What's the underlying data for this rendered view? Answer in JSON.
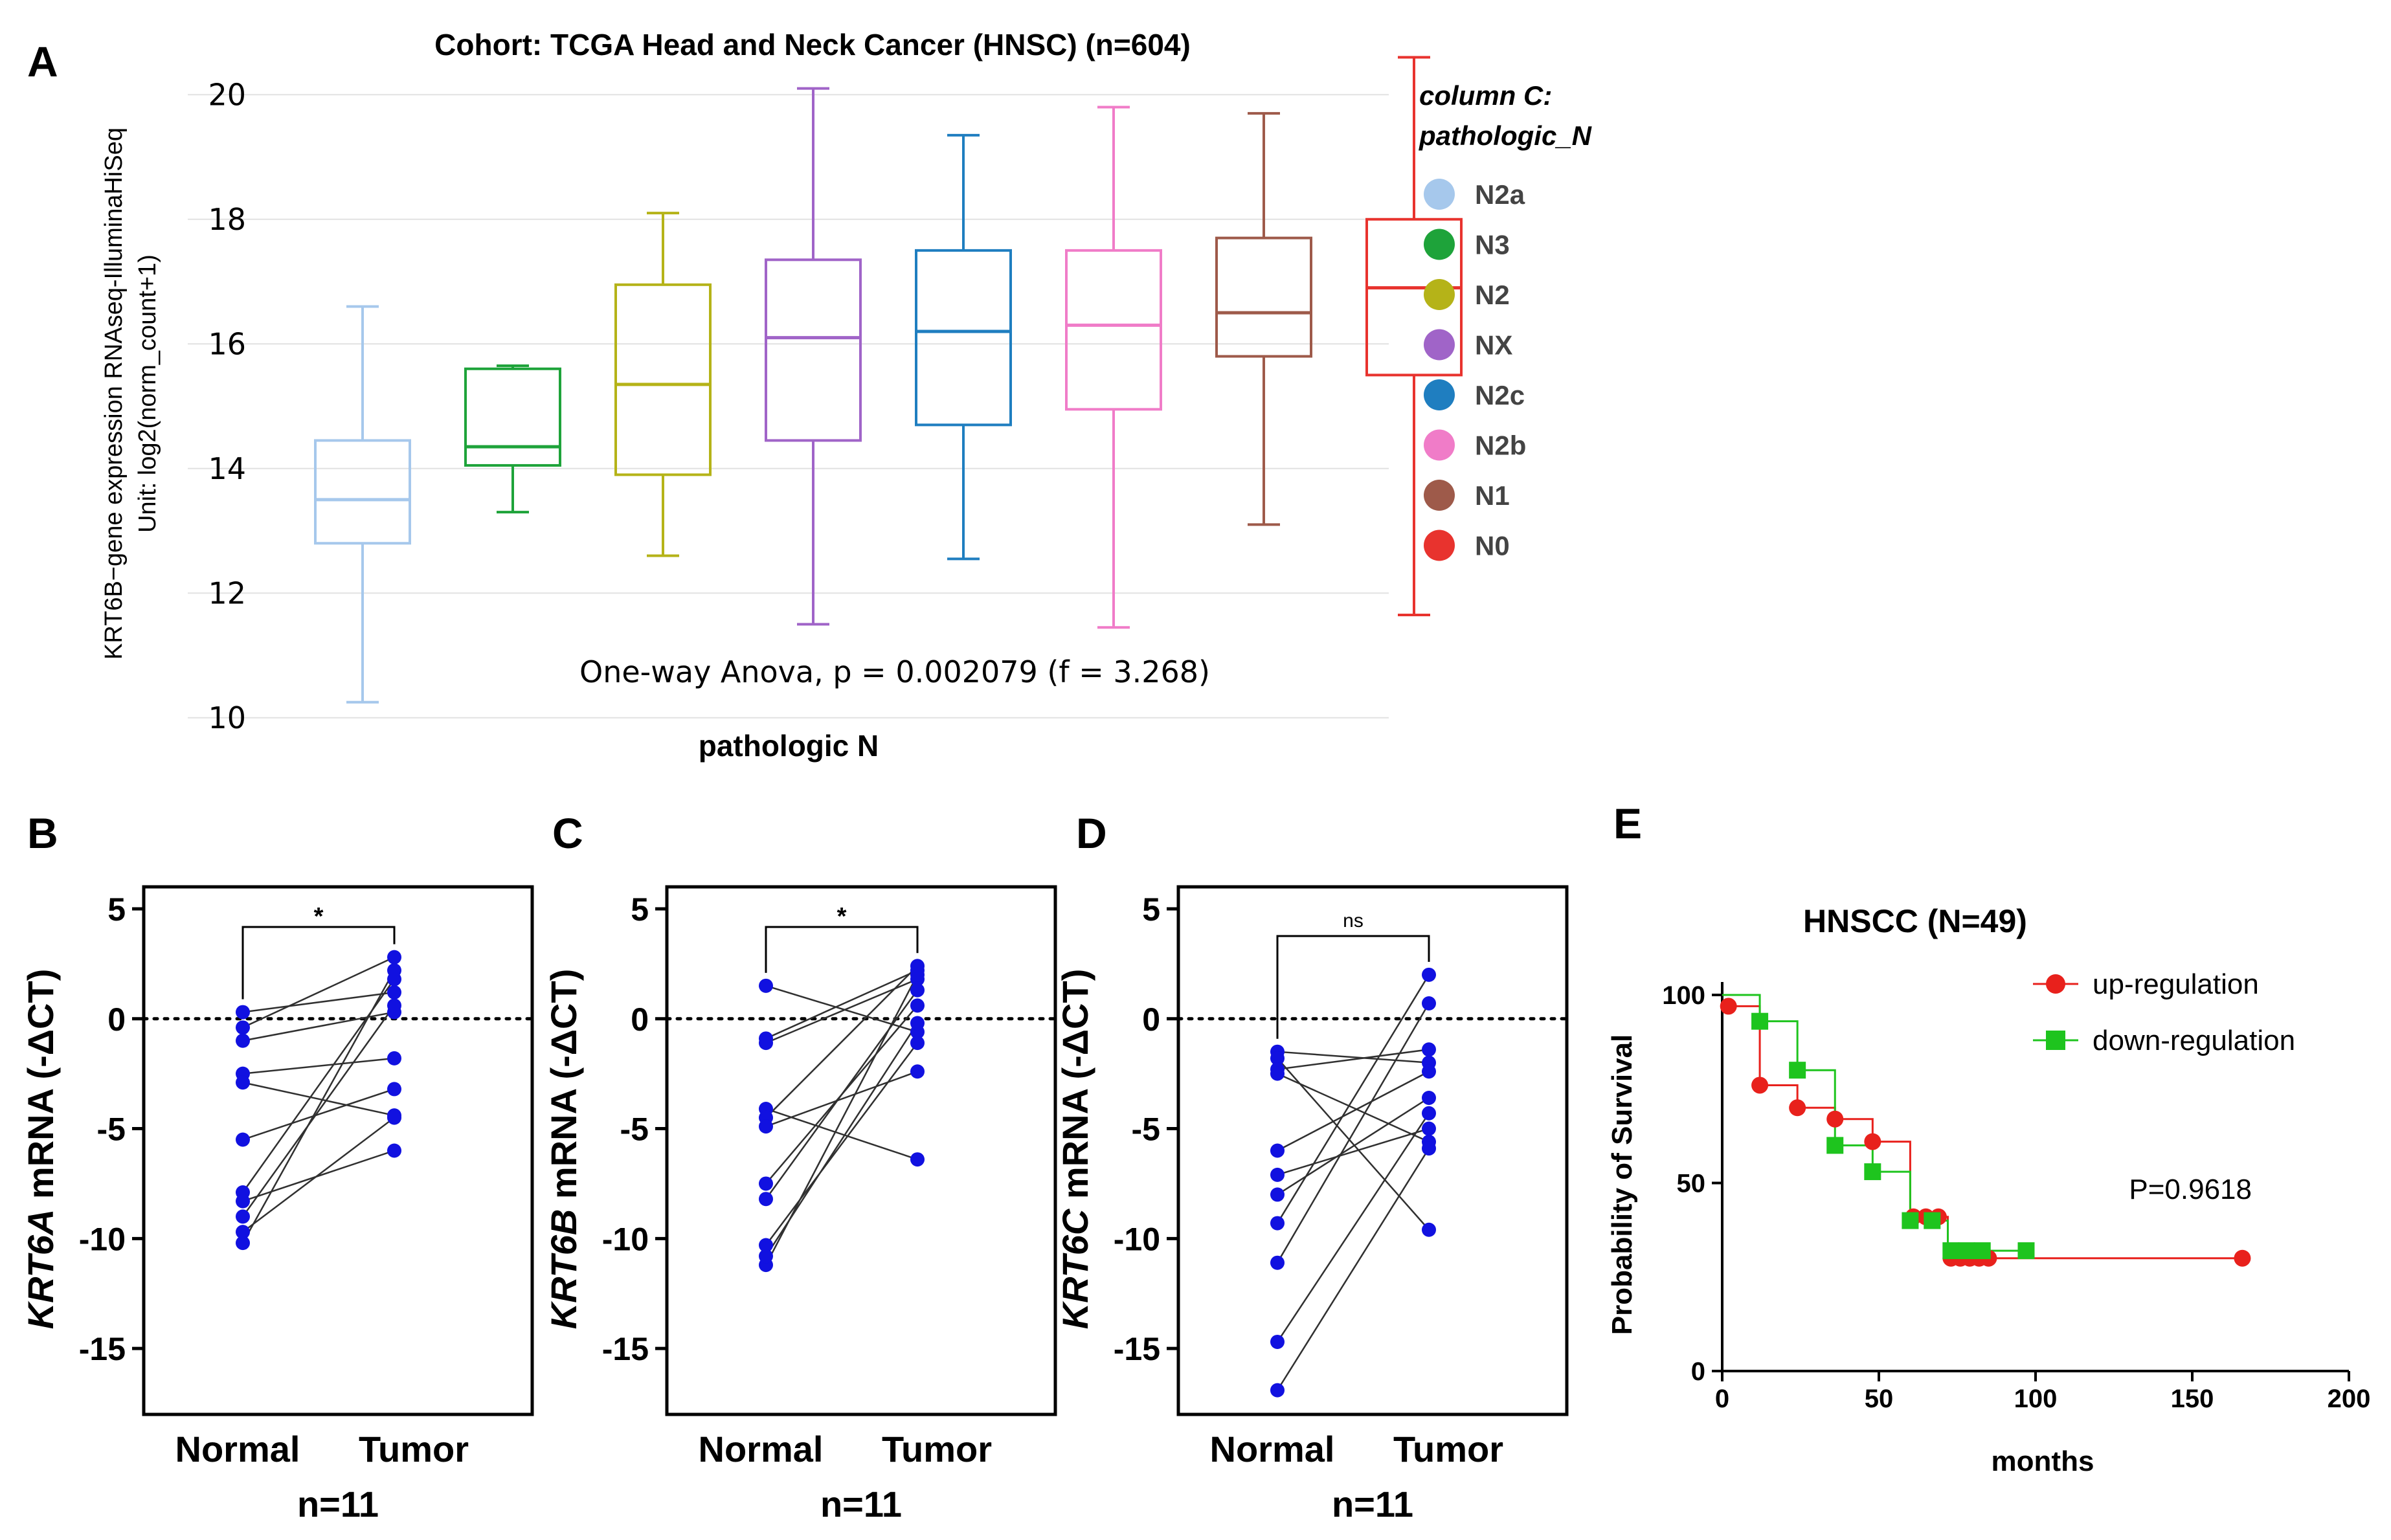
{
  "figure": {
    "panel_letters": [
      "A",
      "B",
      "C",
      "D",
      "E"
    ]
  },
  "chart_data": [
    {
      "panel": "A",
      "type": "box",
      "title": "Cohort: TCGA Head and Neck Cancer (HNSC) (n=604)",
      "ylabel_line1": "KRT6B−gene expression RNAseq-IlluminaHiSeq",
      "ylabel_line2": "Unit: log2(norm_count+1)",
      "xlabel": "pathologic N",
      "ylim": [
        9.8,
        21.0
      ],
      "yticks": [
        10,
        12,
        14,
        16,
        18,
        20
      ],
      "annotation": "One-way Anova, p = 0.002079 (f = 3.268)",
      "legend_title_line1": "column C:",
      "legend_title_line2": "pathologic_N",
      "legend_position": "right",
      "groups": [
        {
          "name": "N2a",
          "color": "#a6c8ec",
          "min": 10.25,
          "q1": 12.8,
          "median": 13.5,
          "q3": 14.45,
          "max": 16.6
        },
        {
          "name": "N3",
          "color": "#1ea33a",
          "min": 13.3,
          "q1": 14.05,
          "median": 14.35,
          "q3": 15.6,
          "max": 15.65
        },
        {
          "name": "N2",
          "color": "#b5b318",
          "min": 12.6,
          "q1": 13.9,
          "median": 15.35,
          "q3": 16.95,
          "max": 18.1
        },
        {
          "name": "NX",
          "color": "#a064c8",
          "min": 11.5,
          "q1": 14.45,
          "median": 16.1,
          "q3": 17.35,
          "max": 20.1
        },
        {
          "name": "N2c",
          "color": "#1f7ec0",
          "min": 12.55,
          "q1": 14.7,
          "median": 16.2,
          "q3": 17.5,
          "max": 19.35
        },
        {
          "name": "N2b",
          "color": "#f07cc8",
          "min": 11.45,
          "q1": 14.95,
          "median": 16.3,
          "q3": 17.5,
          "max": 19.8
        },
        {
          "name": "N1",
          "color": "#9e5a4a",
          "min": 13.1,
          "q1": 15.8,
          "median": 16.5,
          "q3": 17.7,
          "max": 19.7
        },
        {
          "name": "N0",
          "color": "#e8332e",
          "min": 11.65,
          "q1": 15.5,
          "median": 16.9,
          "q3": 18.0,
          "max": 20.6
        }
      ]
    },
    {
      "panel": "B",
      "type": "paired-scatter",
      "ylabel_gene": "KRT6A",
      "ylabel_rest": " mRNA (-ΔCT)",
      "ylim": [
        -18,
        6
      ],
      "yticks": [
        5,
        0,
        -5,
        -10,
        -15
      ],
      "categories": [
        "Normal",
        "Tumor"
      ],
      "n_label": "n=11",
      "significance": "*",
      "pairs": [
        [
          0.3,
          1.2
        ],
        [
          -0.4,
          2.8
        ],
        [
          -1.0,
          0.3
        ],
        [
          -2.5,
          -1.8
        ],
        [
          -2.9,
          -4.4
        ],
        [
          -5.5,
          -3.2
        ],
        [
          -7.9,
          1.8
        ],
        [
          -8.3,
          -6.0
        ],
        [
          -9.0,
          0.6
        ],
        [
          -9.7,
          -4.5
        ],
        [
          -10.2,
          2.2
        ]
      ]
    },
    {
      "panel": "C",
      "type": "paired-scatter",
      "ylabel_gene": "KRT6B",
      "ylabel_rest": " mRNA (-ΔCT)",
      "ylim": [
        -18,
        6
      ],
      "yticks": [
        5,
        0,
        -5,
        -10,
        -15
      ],
      "categories": [
        "Normal",
        "Tumor"
      ],
      "n_label": "n=11",
      "significance": "*",
      "pairs": [
        [
          1.5,
          -0.6
        ],
        [
          -0.9,
          2.2
        ],
        [
          -1.1,
          1.8
        ],
        [
          -4.1,
          -6.4
        ],
        [
          -4.5,
          2.4
        ],
        [
          -4.9,
          -2.4
        ],
        [
          -7.5,
          0.6
        ],
        [
          -8.2,
          1.3
        ],
        [
          -10.3,
          -1.1
        ],
        [
          -11.2,
          2.0
        ],
        [
          -10.8,
          -0.2
        ]
      ]
    },
    {
      "panel": "D",
      "type": "paired-scatter",
      "ylabel_gene": "KRT6C",
      "ylabel_rest": " mRNA (-ΔCT)",
      "ylim": [
        -18,
        6
      ],
      "yticks": [
        5,
        0,
        -5,
        -10,
        -15
      ],
      "categories": [
        "Normal",
        "Tumor"
      ],
      "n_label": "n=11",
      "significance": "ns",
      "pairs": [
        [
          -1.5,
          -2.0
        ],
        [
          -1.8,
          -9.6
        ],
        [
          -2.3,
          -1.4
        ],
        [
          -2.5,
          -5.6
        ],
        [
          -6.0,
          -2.4
        ],
        [
          -7.1,
          -5.0
        ],
        [
          -8.0,
          -3.6
        ],
        [
          -9.3,
          2.0
        ],
        [
          -11.1,
          0.7
        ],
        [
          -14.7,
          -4.3
        ],
        [
          -16.9,
          -5.9
        ]
      ]
    },
    {
      "panel": "E",
      "type": "survival",
      "title": "HNSCC (N=49)",
      "xlabel": "months",
      "ylabel": "Probability of Survival",
      "xlim": [
        0,
        200
      ],
      "ylim": [
        0,
        100
      ],
      "xticks": [
        0,
        50,
        100,
        150,
        200
      ],
      "yticks": [
        0,
        50,
        100
      ],
      "p_value": "P=0.9618",
      "legend_position": "top-right",
      "series": [
        {
          "name": "up-regulation",
          "color": "#e8211c",
          "marker": "circle",
          "steps": [
            [
              0,
              97
            ],
            [
              12,
              97
            ],
            [
              12,
              76
            ],
            [
              24,
              76
            ],
            [
              24,
              70
            ],
            [
              36,
              70
            ],
            [
              36,
              67
            ],
            [
              48,
              67
            ],
            [
              48,
              61
            ],
            [
              60,
              61
            ],
            [
              60,
              41
            ],
            [
              72,
              41
            ],
            [
              72,
              30
            ],
            [
              166,
              30
            ]
          ],
          "points": [
            [
              2,
              97
            ],
            [
              12,
              76
            ],
            [
              24,
              70
            ],
            [
              36,
              67
            ],
            [
              48,
              61
            ],
            [
              61,
              41
            ],
            [
              65,
              41
            ],
            [
              69,
              41
            ],
            [
              73,
              30
            ],
            [
              76,
              30
            ],
            [
              79,
              30
            ],
            [
              82,
              30
            ],
            [
              85,
              30
            ],
            [
              166,
              30
            ]
          ]
        },
        {
          "name": "down-regulation",
          "color": "#1ec41e",
          "marker": "square",
          "steps": [
            [
              0,
              100
            ],
            [
              12,
              100
            ],
            [
              12,
              93
            ],
            [
              24,
              93
            ],
            [
              24,
              80
            ],
            [
              36,
              80
            ],
            [
              36,
              60
            ],
            [
              48,
              60
            ],
            [
              48,
              53
            ],
            [
              60,
              53
            ],
            [
              60,
              40
            ],
            [
              72,
              40
            ],
            [
              72,
              32
            ],
            [
              97,
              32
            ]
          ],
          "points": [
            [
              12,
              93
            ],
            [
              24,
              80
            ],
            [
              36,
              60
            ],
            [
              48,
              53
            ],
            [
              60,
              40
            ],
            [
              67,
              40
            ],
            [
              73,
              32
            ],
            [
              78,
              32
            ],
            [
              83,
              32
            ],
            [
              97,
              32
            ]
          ]
        }
      ]
    }
  ]
}
